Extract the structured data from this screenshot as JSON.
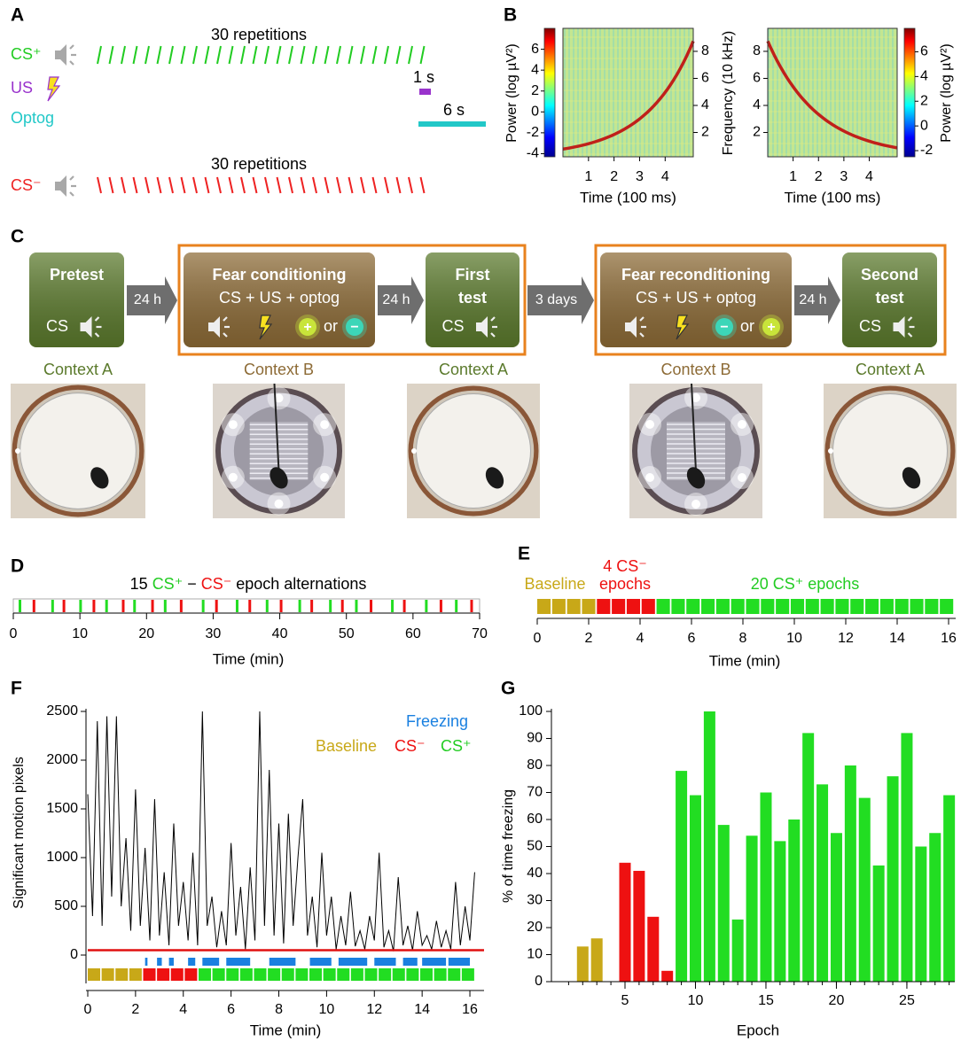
{
  "panel_labels": [
    "A",
    "B",
    "C",
    "D",
    "E",
    "F",
    "G"
  ],
  "protocol_a": {
    "rows": [
      {
        "label": "CS⁺",
        "color": "#22cc22",
        "note": "30 repetitions"
      },
      {
        "label": "US",
        "color": "#9933cc",
        "note": "1 s"
      },
      {
        "label": "Optog",
        "color": "#22c8c8",
        "note": "6 s"
      },
      {
        "label": "CS⁻",
        "color": "#ee2222",
        "note": "30 repetitions"
      }
    ]
  },
  "protocol_c": {
    "steps": [
      {
        "lines": [
          "Pretest"
        ],
        "stimulus": "CS",
        "context": "Context A",
        "color": "#5b7a2c"
      },
      {
        "lines": [
          "Fear conditioning",
          "CS + US + optog"
        ],
        "optog": [
          {
            "sign": "+",
            "color": "#c8e43a"
          },
          {
            "sign": "−",
            "color": "#3cd6b8"
          }
        ],
        "or": "or",
        "context": "Context B",
        "color": "#8d6b36"
      },
      {
        "lines": [
          "First",
          "test"
        ],
        "stimulus": "CS",
        "context": "Context A",
        "color": "#5b7a2c"
      },
      {
        "lines": [
          "Fear reconditioning",
          "CS + US + optog"
        ],
        "optog": [
          {
            "sign": "−",
            "color": "#3cd6b8"
          },
          {
            "sign": "+",
            "color": "#c8e43a"
          }
        ],
        "or": "or",
        "context": "Context B",
        "color": "#8d6b36"
      },
      {
        "lines": [
          "Second",
          "test"
        ],
        "stimulus": "CS",
        "context": "Context A",
        "color": "#5b7a2c"
      }
    ],
    "intervals": [
      "24 h",
      "24 h",
      "3 days",
      "24 h"
    ]
  },
  "chart_data": [
    {
      "type": "spectrogram",
      "xlabel": "Time (100 ms)",
      "xlim": [
        0,
        5.1
      ],
      "xticks": [
        1,
        2,
        3,
        4
      ],
      "ylabel": "Frequency (10 kHz)",
      "ylim": [
        0.2,
        9.7
      ],
      "yticks": [
        2,
        4,
        6,
        8
      ],
      "colorbar": {
        "label": "Power (log µV²)",
        "lim": [
          -4.3,
          8
        ],
        "ticks": [
          -4,
          -2,
          0,
          2,
          4,
          6
        ]
      }
    },
    {
      "type": "spectrogram",
      "xlabel": "Time (100 ms)",
      "xlim": [
        0,
        5.1
      ],
      "xticks": [
        1,
        2,
        3,
        4
      ],
      "ylim": [
        0.2,
        9.7
      ],
      "yticks": [
        2,
        4,
        6,
        8
      ],
      "colorbar": {
        "label": "Power (log µV²)",
        "lim": [
          -2.5,
          7.9
        ],
        "ticks": [
          -2,
          0,
          2,
          4,
          6
        ]
      }
    },
    {
      "type": "event_raster",
      "title_parts": [
        {
          "text": "15 ",
          "color": "#000000"
        },
        {
          "text": "CS⁺",
          "color": "#22cc22"
        },
        {
          "text": " − ",
          "color": "#000000"
        },
        {
          "text": "CS⁻",
          "color": "#ee1111"
        },
        {
          "text": " epoch alternations",
          "color": "#000000"
        }
      ],
      "series": [
        {
          "color": "#22dd22",
          "x": [
            1.0,
            5.9,
            10.1,
            14.0,
            18.2,
            22.8,
            28.5,
            33.6,
            38.1,
            43.0,
            47.6,
            51.5,
            56.9,
            62.0,
            66.5
          ]
        },
        {
          "color": "#ee1111",
          "x": [
            3.1,
            7.6,
            12.1,
            16.5,
            20.9,
            25.2,
            30.5,
            35.5,
            40.2,
            44.8,
            49.4,
            53.7,
            58.7,
            64.2,
            68.8
          ]
        }
      ],
      "xlim": [
        0,
        70
      ],
      "xticks": [
        0,
        10,
        20,
        30,
        40,
        50,
        60,
        70
      ],
      "xlabel": "Time (min)"
    },
    {
      "type": "epochs",
      "annotations": [
        {
          "text": "4 CS⁻",
          "color": "#ee1111"
        },
        {
          "text": "Baseline",
          "color": "#c8a818"
        },
        {
          "text": "epochs",
          "color": "#ee1111"
        },
        {
          "text": "20 CS⁺ epochs",
          "color": "#22cc22"
        }
      ],
      "series": [
        {
          "color": "#c8a818",
          "starts": [
            0,
            0.58,
            1.16,
            1.74
          ]
        },
        {
          "color": "#ee1111",
          "starts": [
            2.32,
            2.9,
            3.48,
            4.06
          ]
        },
        {
          "color": "#22dd22",
          "starts": [
            4.64,
            5.22,
            5.8,
            6.38,
            6.96,
            7.54,
            8.12,
            8.7,
            9.28,
            9.86,
            10.44,
            11.02,
            11.6,
            12.18,
            12.76,
            13.34,
            13.92,
            14.5,
            15.08,
            15.66
          ]
        }
      ],
      "epoch_length": 0.52,
      "xlim": [
        0,
        16.3
      ],
      "xticks": [
        0,
        2,
        4,
        6,
        8,
        10,
        12,
        14,
        16
      ],
      "xlabel": "Time (min)"
    },
    {
      "type": "trace",
      "legend": [
        {
          "text": "Freezing",
          "color": "#1a80e0"
        },
        {
          "text": "Baseline",
          "color": "#c8a818"
        },
        {
          "text": "CS⁻",
          "color": "#ee1111"
        },
        {
          "text": "CS⁺",
          "color": "#22cc22"
        }
      ],
      "x": [
        0,
        0.2,
        0.4,
        0.6,
        0.8,
        1,
        1.2,
        1.4,
        1.6,
        1.8,
        2,
        2.2,
        2.4,
        2.6,
        2.8,
        3,
        3.2,
        3.4,
        3.6,
        3.8,
        4,
        4.2,
        4.4,
        4.6,
        4.8,
        5,
        5.2,
        5.4,
        5.6,
        5.8,
        6,
        6.2,
        6.4,
        6.6,
        6.8,
        7,
        7.2,
        7.4,
        7.6,
        7.8,
        8,
        8.2,
        8.4,
        8.6,
        8.8,
        9,
        9.2,
        9.4,
        9.6,
        9.8,
        10,
        10.2,
        10.4,
        10.6,
        10.8,
        11,
        11.2,
        11.4,
        11.6,
        11.8,
        12,
        12.2,
        12.4,
        12.6,
        12.8,
        13,
        13.2,
        13.4,
        13.6,
        13.8,
        14,
        14.2,
        14.4,
        14.6,
        14.8,
        15,
        15.2,
        15.4,
        15.6,
        15.8,
        16,
        16.2
      ],
      "values": [
        1650,
        400,
        2400,
        300,
        2450,
        600,
        2450,
        500,
        1200,
        250,
        1700,
        300,
        1100,
        150,
        1600,
        200,
        850,
        100,
        1350,
        300,
        750,
        150,
        1050,
        100,
        2500,
        300,
        600,
        80,
        450,
        100,
        1150,
        200,
        700,
        60,
        900,
        150,
        2500,
        300,
        1900,
        200,
        1350,
        120,
        1450,
        300,
        1000,
        1600,
        200,
        600,
        80,
        1050,
        200,
        600,
        60,
        400,
        100,
        650,
        90,
        250,
        60,
        400,
        150,
        1050,
        80,
        250,
        40,
        800,
        100,
        300,
        50,
        450,
        100,
        200,
        60,
        350,
        80,
        250,
        60,
        750,
        100,
        500,
        150,
        850
      ],
      "color": "#000000",
      "threshold": 50,
      "threshold_color": "#e01010",
      "freezing": [
        [
          2.4,
          2.5
        ],
        [
          2.9,
          3.1
        ],
        [
          3.4,
          3.6
        ],
        [
          4.2,
          4.5
        ],
        [
          4.8,
          5.5
        ],
        [
          5.8,
          6.8
        ],
        [
          7.6,
          8.7
        ],
        [
          9.3,
          10.2
        ],
        [
          10.5,
          11.7
        ],
        [
          12.0,
          12.9
        ],
        [
          13.2,
          13.8
        ],
        [
          14.0,
          15.0
        ],
        [
          15.1,
          16.0
        ]
      ],
      "freezing_color": "#1a80e0",
      "xlim": [
        0,
        16.6
      ],
      "xticks": [
        0,
        2,
        4,
        6,
        8,
        10,
        12,
        14,
        16
      ],
      "ylim": [
        0,
        2500
      ],
      "yticks": [
        0,
        500,
        1000,
        1500,
        2000,
        2500
      ],
      "xlabel": "Time (min)",
      "ylabel": "Significant motion pixels"
    },
    {
      "type": "bar",
      "x": [
        1,
        2,
        3,
        4,
        5,
        6,
        7,
        8,
        9,
        10,
        11,
        12,
        13,
        14,
        15,
        16,
        17,
        18,
        19,
        20,
        21,
        22,
        23,
        24,
        25,
        26,
        27,
        28
      ],
      "values": [
        0,
        13,
        16,
        0,
        44,
        41,
        24,
        4,
        78,
        69,
        100,
        58,
        23,
        54,
        70,
        52,
        60,
        92,
        73,
        55,
        80,
        68,
        43,
        76,
        92,
        50,
        55,
        69
      ],
      "colors": [
        "#c8a818",
        "#c8a818",
        "#c8a818",
        "#c8a818",
        "#ee1111",
        "#ee1111",
        "#ee1111",
        "#ee1111",
        "#22dd22",
        "#22dd22",
        "#22dd22",
        "#22dd22",
        "#22dd22",
        "#22dd22",
        "#22dd22",
        "#22dd22",
        "#22dd22",
        "#22dd22",
        "#22dd22",
        "#22dd22",
        "#22dd22",
        "#22dd22",
        "#22dd22",
        "#22dd22",
        "#22dd22",
        "#22dd22",
        "#22dd22",
        "#22dd22"
      ],
      "xlim": [
        0,
        28.4
      ],
      "xticks": [
        5,
        10,
        15,
        20,
        25
      ],
      "ylim": [
        0,
        100
      ],
      "yticks": [
        0,
        10,
        20,
        30,
        40,
        50,
        60,
        70,
        80,
        90,
        100
      ],
      "xlabel": "Epoch",
      "ylabel": "% of time freezing"
    }
  ]
}
